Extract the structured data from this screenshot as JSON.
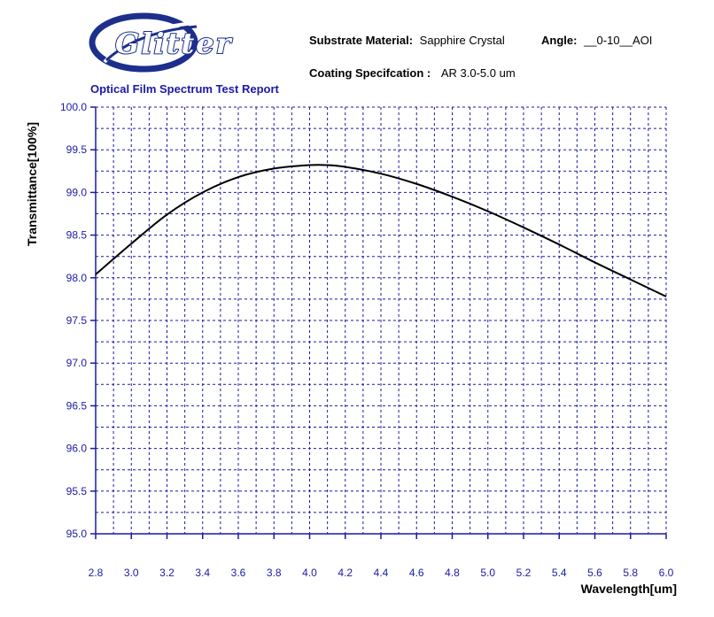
{
  "header": {
    "logo_text": "Glitter",
    "substrate_label": "Substrate Material:",
    "substrate_value": "Sapphire Crystal",
    "angle_label": "Angle:",
    "angle_value": "__0-10__AOI",
    "coating_label": "Coating Specifcation :",
    "coating_value": "AR 3.0-5.0 um",
    "report_title": "Optical Film Spectrum Test Report"
  },
  "colors": {
    "axis_tick_text": "#1a1aa6",
    "grid": "#1a1aa6",
    "curve": "#000000",
    "logo_blue": "#1c2f8c"
  },
  "chart_data": {
    "type": "line",
    "xlabel": "Wavelength[um]",
    "ylabel": "Transmittance[100%]",
    "xlim": [
      2.8,
      6.0
    ],
    "ylim": [
      95.0,
      100.0
    ],
    "x_ticks": [
      "2.8",
      "3.0",
      "3.2",
      "3.4",
      "3.6",
      "3.8",
      "4.0",
      "4.2",
      "4.4",
      "4.6",
      "4.8",
      "5.0",
      "5.2",
      "5.4",
      "5.6",
      "5.8",
      "6.0"
    ],
    "y_ticks": [
      "95.0",
      "95.5",
      "96.0",
      "96.5",
      "97.0",
      "97.5",
      "98.0",
      "98.5",
      "99.0",
      "99.5",
      "100.0"
    ],
    "grid": true,
    "series": [
      {
        "x": [
          2.8,
          3.0,
          3.2,
          3.4,
          3.6,
          3.8,
          4.0,
          4.1,
          4.2,
          4.4,
          4.6,
          4.8,
          5.0,
          5.2,
          5.4,
          5.6,
          5.8,
          6.0
        ],
        "y": [
          98.04,
          98.4,
          98.74,
          99.0,
          99.18,
          99.28,
          99.32,
          99.32,
          99.3,
          99.22,
          99.1,
          98.95,
          98.78,
          98.59,
          98.39,
          98.18,
          97.98,
          97.78
        ]
      }
    ]
  }
}
